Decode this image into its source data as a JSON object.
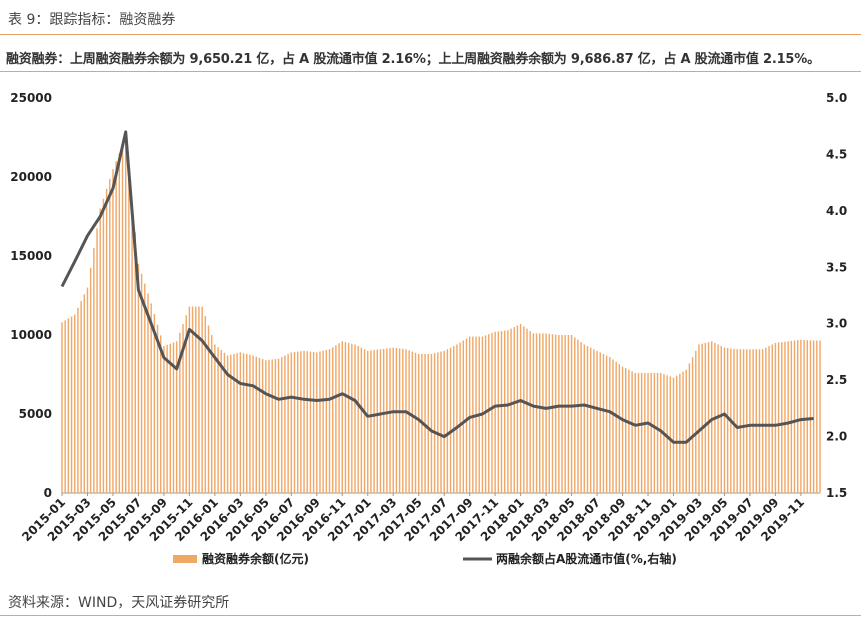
{
  "header": {
    "caption": "表 9：跟踪指标：融资融券",
    "summary": "融资融券：上周融资融券余额为 9,650.21 亿，占 A 股流通市值 2.16%；上上周融资融券余额为 9,686.87 亿，占 A 股流通市值 2.15%。"
  },
  "footer": {
    "source": "资料来源：WIND，天风证券研究所"
  },
  "colors": {
    "bar": "#f0a868",
    "line": "#555555",
    "rule": "#e8a265"
  },
  "chart_data": {
    "type": "bar+line",
    "x_tick_labels": [
      "2015-01",
      "2015-03",
      "2015-05",
      "2015-07",
      "2015-09",
      "2015-11",
      "2016-01",
      "2016-03",
      "2016-05",
      "2016-07",
      "2016-09",
      "2016-11",
      "2017-01",
      "2017-03",
      "2017-05",
      "2017-07",
      "2017-09",
      "2017-11",
      "2018-01",
      "2018-03",
      "2018-05",
      "2018-07",
      "2018-09",
      "2018-11",
      "2019-01",
      "2019-03",
      "2019-05",
      "2019-07",
      "2019-09",
      "2019-11"
    ],
    "y_left": {
      "min": 0,
      "max": 25000,
      "ticks": [
        0,
        5000,
        10000,
        15000,
        20000,
        25000
      ]
    },
    "y_right": {
      "min": 1.5,
      "max": 5.0,
      "ticks": [
        "1.5",
        "2.0",
        "2.5",
        "3.0",
        "3.5",
        "4.0",
        "4.5",
        "5.0"
      ]
    },
    "series": [
      {
        "name": "融资融券余额(亿元)",
        "axis": "left",
        "kind": "bar",
        "points": [
          [
            "2015-01",
            10800
          ],
          [
            "2015-02",
            11300
          ],
          [
            "2015-03",
            13000
          ],
          [
            "2015-04",
            18000
          ],
          [
            "2015-05",
            20500
          ],
          [
            "2015-06",
            22500
          ],
          [
            "2015-07",
            14500
          ],
          [
            "2015-08",
            12000
          ],
          [
            "2015-09",
            9300
          ],
          [
            "2015-10",
            9600
          ],
          [
            "2015-11",
            11800
          ],
          [
            "2015-12",
            11800
          ],
          [
            "2016-01",
            9400
          ],
          [
            "2016-02",
            8700
          ],
          [
            "2016-03",
            8900
          ],
          [
            "2016-04",
            8700
          ],
          [
            "2016-05",
            8400
          ],
          [
            "2016-06",
            8500
          ],
          [
            "2016-07",
            8900
          ],
          [
            "2016-08",
            9000
          ],
          [
            "2016-09",
            8900
          ],
          [
            "2016-10",
            9100
          ],
          [
            "2016-11",
            9600
          ],
          [
            "2016-12",
            9400
          ],
          [
            "2017-01",
            9000
          ],
          [
            "2017-02",
            9100
          ],
          [
            "2017-03",
            9200
          ],
          [
            "2017-04",
            9100
          ],
          [
            "2017-05",
            8800
          ],
          [
            "2017-06",
            8800
          ],
          [
            "2017-07",
            9000
          ],
          [
            "2017-08",
            9400
          ],
          [
            "2017-09",
            9900
          ],
          [
            "2017-10",
            9900
          ],
          [
            "2017-11",
            10200
          ],
          [
            "2017-12",
            10300
          ],
          [
            "2018-01",
            10700
          ],
          [
            "2018-02",
            10100
          ],
          [
            "2018-03",
            10100
          ],
          [
            "2018-04",
            10000
          ],
          [
            "2018-05",
            10000
          ],
          [
            "2018-06",
            9400
          ],
          [
            "2018-07",
            9000
          ],
          [
            "2018-08",
            8600
          ],
          [
            "2018-09",
            8000
          ],
          [
            "2018-10",
            7600
          ],
          [
            "2018-11",
            7600
          ],
          [
            "2018-12",
            7600
          ],
          [
            "2019-01",
            7300
          ],
          [
            "2019-02",
            7800
          ],
          [
            "2019-03",
            9400
          ],
          [
            "2019-04",
            9600
          ],
          [
            "2019-05",
            9200
          ],
          [
            "2019-06",
            9100
          ],
          [
            "2019-07",
            9100
          ],
          [
            "2019-08",
            9100
          ],
          [
            "2019-09",
            9500
          ],
          [
            "2019-10",
            9600
          ],
          [
            "2019-11",
            9700
          ],
          [
            "2019-12",
            9650
          ]
        ]
      },
      {
        "name": "两融余额占A股流通市值(%,右轴)",
        "axis": "right",
        "kind": "line",
        "points": [
          [
            "2015-01",
            3.33
          ],
          [
            "2015-02",
            3.55
          ],
          [
            "2015-03",
            3.78
          ],
          [
            "2015-04",
            3.95
          ],
          [
            "2015-05",
            4.2
          ],
          [
            "2015-06",
            4.7
          ],
          [
            "2015-07",
            3.3
          ],
          [
            "2015-08",
            3.0
          ],
          [
            "2015-09",
            2.7
          ],
          [
            "2015-10",
            2.6
          ],
          [
            "2015-11",
            2.95
          ],
          [
            "2015-12",
            2.85
          ],
          [
            "2016-01",
            2.7
          ],
          [
            "2016-02",
            2.55
          ],
          [
            "2016-03",
            2.47
          ],
          [
            "2016-04",
            2.45
          ],
          [
            "2016-05",
            2.38
          ],
          [
            "2016-06",
            2.33
          ],
          [
            "2016-07",
            2.35
          ],
          [
            "2016-08",
            2.33
          ],
          [
            "2016-09",
            2.32
          ],
          [
            "2016-10",
            2.33
          ],
          [
            "2016-11",
            2.38
          ],
          [
            "2016-12",
            2.32
          ],
          [
            "2017-01",
            2.18
          ],
          [
            "2017-02",
            2.2
          ],
          [
            "2017-03",
            2.22
          ],
          [
            "2017-04",
            2.22
          ],
          [
            "2017-05",
            2.15
          ],
          [
            "2017-06",
            2.05
          ],
          [
            "2017-07",
            2.0
          ],
          [
            "2017-08",
            2.08
          ],
          [
            "2017-09",
            2.17
          ],
          [
            "2017-10",
            2.2
          ],
          [
            "2017-11",
            2.27
          ],
          [
            "2017-12",
            2.28
          ],
          [
            "2018-01",
            2.32
          ],
          [
            "2018-02",
            2.27
          ],
          [
            "2018-03",
            2.25
          ],
          [
            "2018-04",
            2.27
          ],
          [
            "2018-05",
            2.27
          ],
          [
            "2018-06",
            2.28
          ],
          [
            "2018-07",
            2.25
          ],
          [
            "2018-08",
            2.22
          ],
          [
            "2018-09",
            2.15
          ],
          [
            "2018-10",
            2.1
          ],
          [
            "2018-11",
            2.12
          ],
          [
            "2018-12",
            2.05
          ],
          [
            "2019-01",
            1.95
          ],
          [
            "2019-02",
            1.95
          ],
          [
            "2019-03",
            2.05
          ],
          [
            "2019-04",
            2.15
          ],
          [
            "2019-05",
            2.2
          ],
          [
            "2019-06",
            2.08
          ],
          [
            "2019-07",
            2.1
          ],
          [
            "2019-08",
            2.1
          ],
          [
            "2019-09",
            2.1
          ],
          [
            "2019-10",
            2.12
          ],
          [
            "2019-11",
            2.15
          ],
          [
            "2019-12",
            2.16
          ]
        ]
      }
    ],
    "legend": {
      "position": "bottom"
    }
  }
}
